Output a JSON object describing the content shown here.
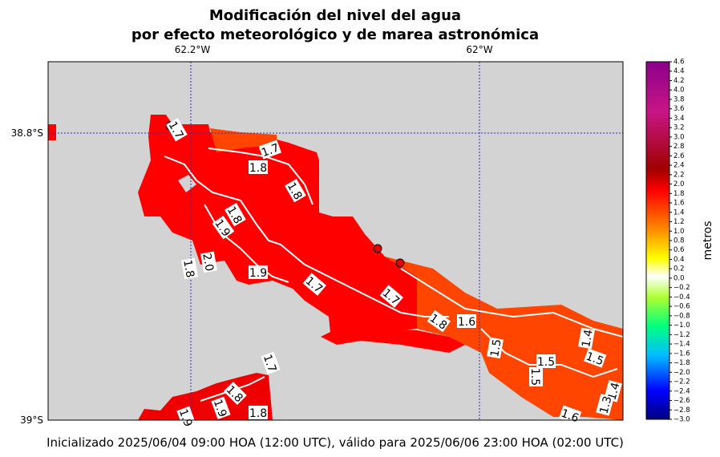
{
  "title": [
    "Modificación del nivel del agua",
    "por efecto meteorológico y de marea astronómica"
  ],
  "map": {
    "lon_labels": [
      "62.2°W",
      "62°W"
    ],
    "lat_labels": [
      "38.8°S",
      "39°S"
    ],
    "contour_labels": [
      "1.7",
      "1.7",
      "1.8",
      "1.8",
      "1.8",
      "1.9",
      "2.0",
      "1.8",
      "1.9",
      "1.7",
      "1.7",
      "1.8",
      "1.6",
      "1.5",
      "1.4",
      "1.5",
      "1.5",
      "1.5",
      "1.4",
      "1.3",
      "1.6",
      "1.7",
      "1.8",
      "1.9",
      "1.8",
      "1.9"
    ]
  },
  "colorbar": {
    "label": "metros",
    "ticks": [
      4.6,
      4.4,
      4.2,
      {
        "value": 4.0,
        "label": "4.0"
      },
      3.8,
      3.6,
      3.4,
      3.2,
      {
        "value": 3.0,
        "label": "3.0"
      },
      2.8,
      2.6,
      2.4,
      2.2,
      {
        "value": 2.0,
        "label": "2.0"
      },
      1.8,
      1.6,
      1.4,
      1.2,
      {
        "value": 1.0,
        "label": "1.0"
      },
      0.8,
      0.6,
      0.4,
      0.2,
      {
        "value": 0,
        "label": "0.0"
      },
      {
        "value": -0.2,
        "label": "−0.2"
      },
      {
        "value": -0.4,
        "label": "−0.4"
      },
      {
        "value": -0.6,
        "label": "−0.6"
      },
      {
        "value": -0.8,
        "label": "−0.8"
      },
      {
        "value": -1.0,
        "label": "−1.0"
      },
      {
        "value": -1.2,
        "label": "−1.2"
      },
      {
        "value": -1.4,
        "label": "−1.4"
      },
      {
        "value": -1.6,
        "label": "−1.6"
      },
      {
        "value": -1.8,
        "label": "−1.8"
      },
      {
        "value": -2.0,
        "label": "−2.0"
      },
      {
        "value": -2.2,
        "label": "−2.2"
      },
      {
        "value": -2.4,
        "label": "−2.4"
      },
      {
        "value": -2.6,
        "label": "−2.6"
      },
      {
        "value": -2.8,
        "label": "−2.8"
      },
      {
        "value": -3.0,
        "label": "−3.0"
      }
    ]
  },
  "footer": "Inicializado 2025/06/04 09:00 HOA (12:00 UTC), válido para 2025/06/06 23:00 HOA (02:00 UTC)"
}
